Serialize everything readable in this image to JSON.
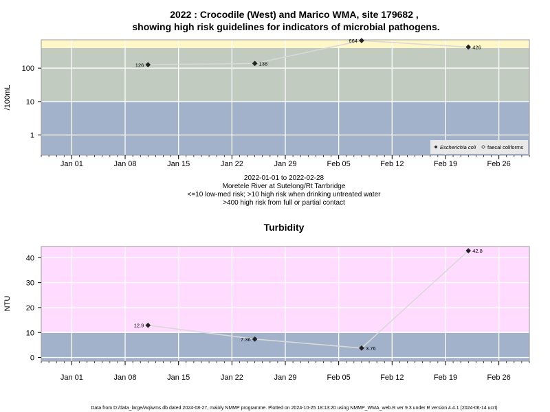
{
  "header": {
    "title_line1": "2022 : Crocodile (West) and Marico WMA, site 179682 ,",
    "title_line2": "showing high risk guidelines for indicators of microbial pathogens."
  },
  "info": {
    "line1": "2022-01-01 to 2022-02-28",
    "line2": "Moretele River at Sutelong/Rt Tarrbridge",
    "line3": "<=10 low-med risk; >10 high risk when drinking untreated water",
    "line4": ">400 high risk from full or partial contact"
  },
  "footer": {
    "text": "Data from D:/data_large/wq/wms.db dated 2024-08-27, mainly NMMP programme. Plotted on 2024-10-25 18:13:20 using NMMP_WMA_web.R ver 9.3 under R version 4.4.1 (2024-06-14 ucrt)"
  },
  "colors": {
    "low_band": "#a2b2cb",
    "mid_band": "#c1cbc0",
    "high_band": "#fff7c8",
    "turb_high_band": "#ffdcff",
    "line": "#d9d9d9",
    "point": "#222222"
  },
  "chart_data": [
    {
      "type": "scatter",
      "title": "",
      "ylabel": "/100mL",
      "yscale": "log",
      "ylim": [
        0.25,
        700
      ],
      "yticks": [
        1,
        10,
        100
      ],
      "ytick_labels": [
        "1",
        "10",
        "100"
      ],
      "xlim": [
        "2021-12-28",
        "2022-03-02"
      ],
      "xticks": [
        "2022-01-01",
        "2022-01-08",
        "2022-01-15",
        "2022-01-22",
        "2022-01-29",
        "2022-02-05",
        "2022-02-12",
        "2022-02-19",
        "2022-02-26"
      ],
      "xtick_labels": [
        "Jan 01",
        "Jan 08",
        "Jan 15",
        "Jan 22",
        "Jan 29",
        "Feb 05",
        "Feb 12",
        "Feb 19",
        "Feb 26"
      ],
      "bands": [
        {
          "from": 0.25,
          "to": 10,
          "color": "#a2b2cb"
        },
        {
          "from": 10,
          "to": 400,
          "color": "#c1cbc0"
        },
        {
          "from": 400,
          "to": 700,
          "color": "#fff7c8"
        }
      ],
      "series": [
        {
          "name": "Escherichia coli",
          "x": [
            "2022-01-11",
            "2022-01-25",
            "2022-02-08",
            "2022-02-22"
          ],
          "y": [
            126,
            138,
            664,
            426
          ],
          "labels": [
            "126",
            "138",
            "664",
            "426"
          ],
          "label_side": [
            "left",
            "right",
            "left",
            "right"
          ]
        }
      ],
      "legend": {
        "position": "bottom-right",
        "entries": [
          {
            "label": "Escherichia coli",
            "marker": "filled-diamond"
          },
          {
            "label": "faecal coliforms",
            "marker": "open-diamond"
          }
        ]
      },
      "grid": true
    },
    {
      "type": "scatter",
      "title": "Turbidity",
      "ylabel": "NTU",
      "yscale": "linear",
      "ylim": [
        -1.5,
        44.5
      ],
      "yticks": [
        0,
        10,
        20,
        30,
        40
      ],
      "ytick_labels": [
        "0",
        "10",
        "20",
        "30",
        "40"
      ],
      "xlim": [
        "2021-12-28",
        "2022-03-02"
      ],
      "xticks": [
        "2022-01-01",
        "2022-01-08",
        "2022-01-15",
        "2022-01-22",
        "2022-01-29",
        "2022-02-05",
        "2022-02-12",
        "2022-02-19",
        "2022-02-26"
      ],
      "xtick_labels": [
        "Jan 01",
        "Jan 08",
        "Jan 15",
        "Jan 22",
        "Jan 29",
        "Feb 05",
        "Feb 12",
        "Feb 19",
        "Feb 26"
      ],
      "bands": [
        {
          "from": -1.5,
          "to": 10,
          "color": "#a2b2cb"
        },
        {
          "from": 10,
          "to": 44.5,
          "color": "#ffdcff"
        }
      ],
      "series": [
        {
          "name": "",
          "x": [
            "2022-01-11",
            "2022-01-25",
            "2022-02-08",
            "2022-02-22"
          ],
          "y": [
            12.9,
            7.36,
            3.76,
            42.8
          ],
          "labels": [
            "12.9",
            "7.36",
            "3.76",
            "42.8"
          ],
          "label_side": [
            "left",
            "left",
            "right",
            "right"
          ]
        }
      ],
      "grid": true
    }
  ]
}
